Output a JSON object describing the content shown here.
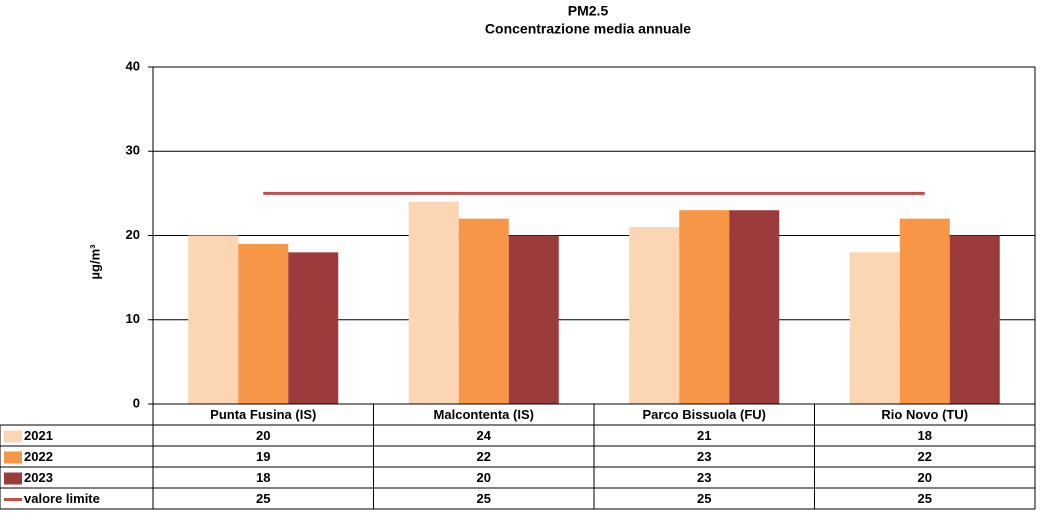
{
  "chart_data": {
    "type": "bar",
    "title": "PM2.5",
    "subtitle": "Concentrazione media annuale",
    "y_label": "µg/m³",
    "categories": [
      "Punta Fusina (IS)",
      "Malcontenta (IS)",
      "Parco Bissuola (FU)",
      "Rio Novo (TU)"
    ],
    "series": [
      {
        "name": "2021",
        "color": "#fcd5b4",
        "values": [
          20,
          24,
          21,
          18
        ]
      },
      {
        "name": "2022",
        "color": "#f79646",
        "values": [
          19,
          22,
          23,
          22
        ]
      },
      {
        "name": "2023",
        "color": "#9b3b3b",
        "values": [
          18,
          20,
          23,
          20
        ]
      },
      {
        "name": "valore limite",
        "type": "line",
        "color": "#c0504d",
        "values": [
          25,
          25,
          25,
          25
        ]
      }
    ],
    "ylim": [
      0,
      40
    ],
    "yticks": [
      0,
      10,
      20,
      30,
      40
    ],
    "grid": true
  }
}
